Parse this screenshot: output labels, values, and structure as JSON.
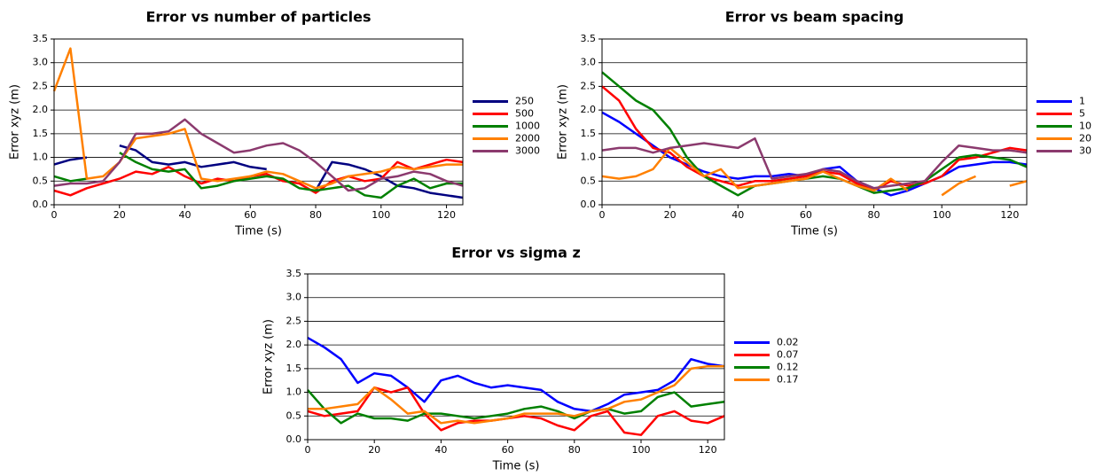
{
  "chart_data": [
    {
      "type": "line",
      "title": "Error vs number of particles",
      "xlabel": "Time (s)",
      "ylabel": "Error xyz (m)",
      "x": [
        0,
        5,
        10,
        15,
        20,
        25,
        30,
        35,
        40,
        45,
        50,
        55,
        60,
        65,
        70,
        75,
        80,
        85,
        90,
        95,
        100,
        105,
        110,
        115,
        120,
        125
      ],
      "xlim": [
        0,
        125
      ],
      "xticks": [
        0,
        20,
        40,
        60,
        80,
        100,
        120
      ],
      "ylim": [
        0,
        3.5
      ],
      "yticks": [
        {
          "value": 0,
          "label": "0.0"
        },
        0.5,
        {
          "value": 1,
          "label": "1.0"
        },
        1.5,
        {
          "value": 2,
          "label": "2.0"
        },
        2.5,
        {
          "value": 3,
          "label": "3.0"
        },
        3.5
      ],
      "grid": true,
      "legend": "right",
      "series": [
        {
          "name": "250",
          "color": "#000080",
          "values": [
            0.85,
            0.95,
            1.0,
            null,
            1.25,
            1.15,
            0.9,
            0.85,
            0.9,
            0.8,
            0.85,
            0.9,
            0.8,
            0.75,
            null,
            null,
            0.3,
            0.9,
            0.85,
            0.75,
            0.6,
            0.4,
            0.35,
            0.25,
            0.2,
            0.15
          ]
        },
        {
          "name": "500",
          "color": "#ff0000",
          "values": [
            0.3,
            0.2,
            0.35,
            0.45,
            0.55,
            0.7,
            0.65,
            0.8,
            0.6,
            0.45,
            0.55,
            0.5,
            0.6,
            0.65,
            0.5,
            0.45,
            0.25,
            0.5,
            0.6,
            0.5,
            0.55,
            0.9,
            0.75,
            0.85,
            0.95,
            0.9
          ]
        },
        {
          "name": "1000",
          "color": "#008000",
          "values": [
            0.6,
            0.5,
            0.55,
            null,
            1.1,
            0.9,
            0.75,
            0.7,
            0.75,
            0.35,
            0.4,
            0.5,
            0.55,
            0.6,
            0.55,
            0.35,
            0.3,
            0.35,
            0.4,
            0.2,
            0.15,
            0.4,
            0.55,
            0.35,
            0.45,
            0.45
          ]
        },
        {
          "name": "2000",
          "color": "#ff8000",
          "values": [
            2.4,
            3.3,
            0.55,
            0.6,
            0.9,
            1.4,
            1.45,
            1.5,
            1.6,
            0.55,
            0.5,
            0.55,
            0.6,
            0.7,
            0.65,
            0.5,
            0.35,
            0.45,
            0.6,
            0.65,
            0.7,
            0.8,
            0.75,
            0.8,
            0.85,
            0.85
          ]
        },
        {
          "name": "3000",
          "color": "#8b3a6e",
          "values": [
            0.4,
            0.45,
            0.45,
            0.5,
            0.9,
            1.5,
            1.5,
            1.55,
            1.8,
            1.5,
            1.3,
            1.1,
            1.15,
            1.25,
            1.3,
            1.15,
            0.9,
            0.6,
            0.3,
            0.35,
            0.55,
            0.6,
            0.7,
            0.65,
            0.5,
            0.4
          ]
        }
      ]
    },
    {
      "type": "line",
      "title": "Error vs beam spacing",
      "xlabel": "Time (s)",
      "ylabel": "Error xyz (m)",
      "x": [
        0,
        5,
        10,
        15,
        20,
        25,
        30,
        35,
        40,
        45,
        50,
        55,
        60,
        65,
        70,
        75,
        80,
        85,
        90,
        95,
        100,
        105,
        110,
        115,
        120,
        125
      ],
      "xlim": [
        0,
        125
      ],
      "xticks": [
        0,
        20,
        40,
        60,
        80,
        100,
        120
      ],
      "ylim": [
        0,
        3.5
      ],
      "yticks": [
        {
          "value": 0,
          "label": "0.0"
        },
        0.5,
        {
          "value": 1,
          "label": "1.0"
        },
        1.5,
        {
          "value": 2,
          "label": "2.0"
        },
        2.5,
        {
          "value": 3,
          "label": "3.0"
        },
        3.5
      ],
      "grid": true,
      "legend": "right",
      "series": [
        {
          "name": "1",
          "color": "#0000ff",
          "values": [
            1.95,
            1.75,
            1.5,
            1.25,
            1.0,
            0.85,
            0.7,
            0.6,
            0.55,
            0.6,
            0.6,
            0.65,
            0.6,
            0.75,
            0.8,
            0.5,
            0.35,
            0.2,
            0.3,
            0.45,
            0.6,
            0.8,
            0.85,
            0.9,
            0.9,
            0.85
          ]
        },
        {
          "name": "5",
          "color": "#ff0000",
          "values": [
            2.5,
            2.2,
            1.6,
            1.2,
            1.1,
            0.8,
            0.6,
            0.5,
            0.4,
            0.5,
            0.5,
            0.55,
            0.6,
            0.7,
            0.65,
            0.45,
            0.3,
            0.5,
            0.4,
            0.45,
            0.6,
            0.95,
            1.0,
            1.1,
            1.2,
            1.15
          ]
        },
        {
          "name": "10",
          "color": "#008000",
          "values": [
            2.8,
            2.5,
            2.2,
            2.0,
            1.6,
            1.0,
            0.6,
            0.4,
            0.2,
            0.4,
            0.45,
            0.5,
            0.55,
            0.6,
            0.55,
            0.4,
            0.25,
            0.3,
            0.35,
            0.5,
            0.75,
            1.0,
            1.05,
            1.0,
            0.95,
            0.8
          ]
        },
        {
          "name": "20",
          "color": "#ff8000",
          "values": [
            0.6,
            0.55,
            0.6,
            0.75,
            1.2,
            0.9,
            0.6,
            0.75,
            0.35,
            0.4,
            0.45,
            0.5,
            0.55,
            0.7,
            0.55,
            0.4,
            0.3,
            0.55,
            0.3,
            null,
            0.2,
            0.45,
            0.6,
            null,
            0.4,
            0.5
          ]
        },
        {
          "name": "30",
          "color": "#8b3a6e",
          "values": [
            1.15,
            1.2,
            1.2,
            1.1,
            1.2,
            1.25,
            1.3,
            1.25,
            1.2,
            1.4,
            0.55,
            0.6,
            0.65,
            0.75,
            0.7,
            0.5,
            0.35,
            0.4,
            0.45,
            0.5,
            0.9,
            1.25,
            1.2,
            1.15,
            1.15,
            1.1
          ]
        }
      ]
    },
    {
      "type": "line",
      "title": "Error vs sigma z",
      "xlabel": "Time (s)",
      "ylabel": "Error xyz (m)",
      "x": [
        0,
        5,
        10,
        15,
        20,
        25,
        30,
        35,
        40,
        45,
        50,
        55,
        60,
        65,
        70,
        75,
        80,
        85,
        90,
        95,
        100,
        105,
        110,
        115,
        120,
        125
      ],
      "xlim": [
        0,
        125
      ],
      "xticks": [
        0,
        20,
        40,
        60,
        80,
        100,
        120
      ],
      "ylim": [
        0,
        3.5
      ],
      "yticks": [
        {
          "value": 0,
          "label": "0.0"
        },
        0.5,
        {
          "value": 1,
          "label": "1.0"
        },
        1.5,
        {
          "value": 2,
          "label": "2.0"
        },
        2.5,
        {
          "value": 3,
          "label": "3.0"
        },
        3.5
      ],
      "grid": true,
      "legend": "right",
      "series": [
        {
          "name": "0.02",
          "color": "#0000ff",
          "values": [
            2.15,
            1.95,
            1.7,
            1.2,
            1.4,
            1.35,
            1.1,
            0.8,
            1.25,
            1.35,
            1.2,
            1.1,
            1.15,
            1.1,
            1.05,
            0.8,
            0.65,
            0.6,
            0.75,
            0.95,
            1.0,
            1.05,
            1.25,
            1.7,
            1.6,
            1.55
          ]
        },
        {
          "name": "0.07",
          "color": "#ff0000",
          "values": [
            0.6,
            0.5,
            0.55,
            0.6,
            1.1,
            1.0,
            1.1,
            0.55,
            0.2,
            0.35,
            0.4,
            0.4,
            0.45,
            0.5,
            0.45,
            0.3,
            0.2,
            0.5,
            0.6,
            0.15,
            0.1,
            0.5,
            0.6,
            0.4,
            0.35,
            0.5
          ]
        },
        {
          "name": "0.12",
          "color": "#008000",
          "values": [
            1.05,
            0.65,
            0.35,
            0.55,
            0.45,
            0.45,
            0.4,
            0.55,
            0.55,
            0.5,
            0.45,
            0.5,
            0.55,
            0.65,
            0.7,
            0.6,
            0.45,
            0.6,
            0.65,
            0.55,
            0.6,
            0.9,
            1.0,
            0.7,
            0.75,
            0.8
          ]
        },
        {
          "name": "0.17",
          "color": "#ff8000",
          "values": [
            0.65,
            0.65,
            0.7,
            0.75,
            1.1,
            0.85,
            0.55,
            0.6,
            0.35,
            0.4,
            0.35,
            0.4,
            0.45,
            0.55,
            0.55,
            0.55,
            0.5,
            0.6,
            0.65,
            0.8,
            0.85,
            1.0,
            1.15,
            1.5,
            1.55,
            1.55
          ]
        }
      ]
    }
  ]
}
